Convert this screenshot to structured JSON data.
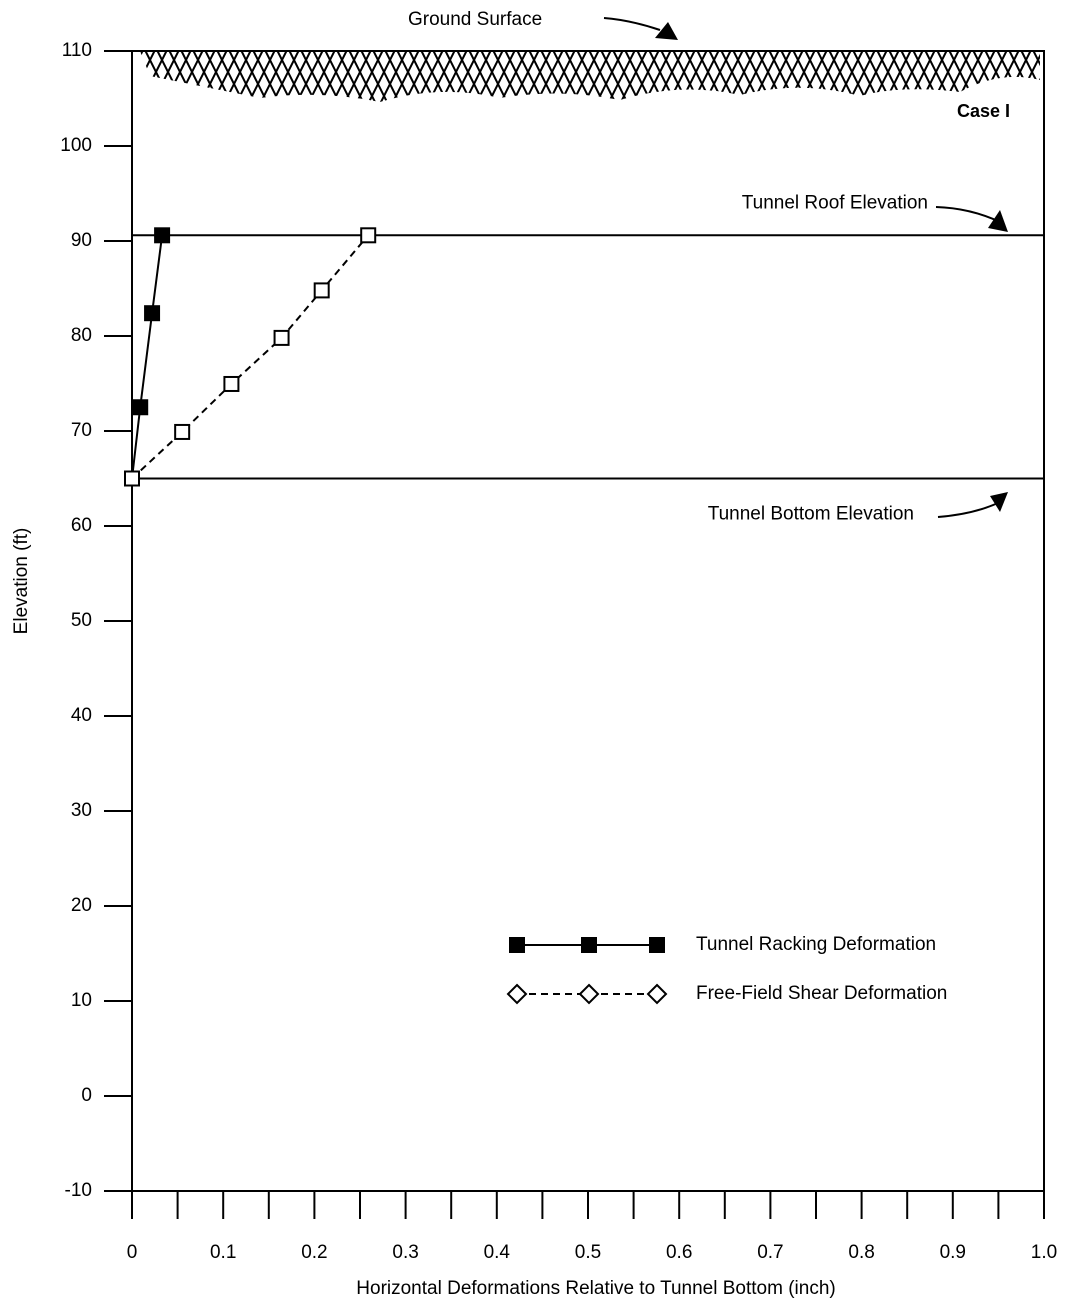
{
  "chart_data": {
    "type": "line",
    "xlabel": "Horizontal Deformations Relative to Tunnel Bottom (inch)",
    "ylabel": "Elevation (ft)",
    "xlim": [
      0,
      1
    ],
    "ylim": [
      -10,
      110
    ],
    "xticks": [
      0,
      0.1,
      0.2,
      0.3,
      0.4,
      0.5,
      0.6,
      0.7,
      0.8,
      0.9,
      {
        "value": 1,
        "label": "1.0"
      }
    ],
    "xminorticks": [
      0.05,
      0.15,
      0.25,
      0.35,
      0.45,
      0.55,
      0.65,
      0.75,
      0.85,
      0.95
    ],
    "yticks": [
      -10,
      0,
      10,
      20,
      30,
      40,
      50,
      60,
      70,
      80,
      90,
      100,
      110
    ],
    "legend": "lower right",
    "annotations": {
      "ground": "Ground Surface",
      "case": "Case I"
    },
    "reference_lines": [
      {
        "value": 90.6,
        "label": "Tunnel Roof Elevation"
      },
      {
        "value": 65,
        "label": "Tunnel Bottom Elevation"
      }
    ],
    "series": [
      {
        "name": "Tunnel Racking Deformation",
        "color": "#000000",
        "marker": "filled",
        "dashed": false,
        "x": [
          0,
          0.009,
          0.022,
          0.033
        ],
        "values": [
          65,
          72.5,
          82.4,
          90.6
        ]
      },
      {
        "name": "Free-Field Shear Deformation",
        "color": "#000000",
        "marker": "open",
        "dashed": true,
        "x": [
          0,
          0.055,
          0.109,
          0.164,
          0.208,
          0.259
        ],
        "values": [
          65,
          69.9,
          74.95,
          79.8,
          84.8,
          90.6
        ]
      }
    ]
  }
}
